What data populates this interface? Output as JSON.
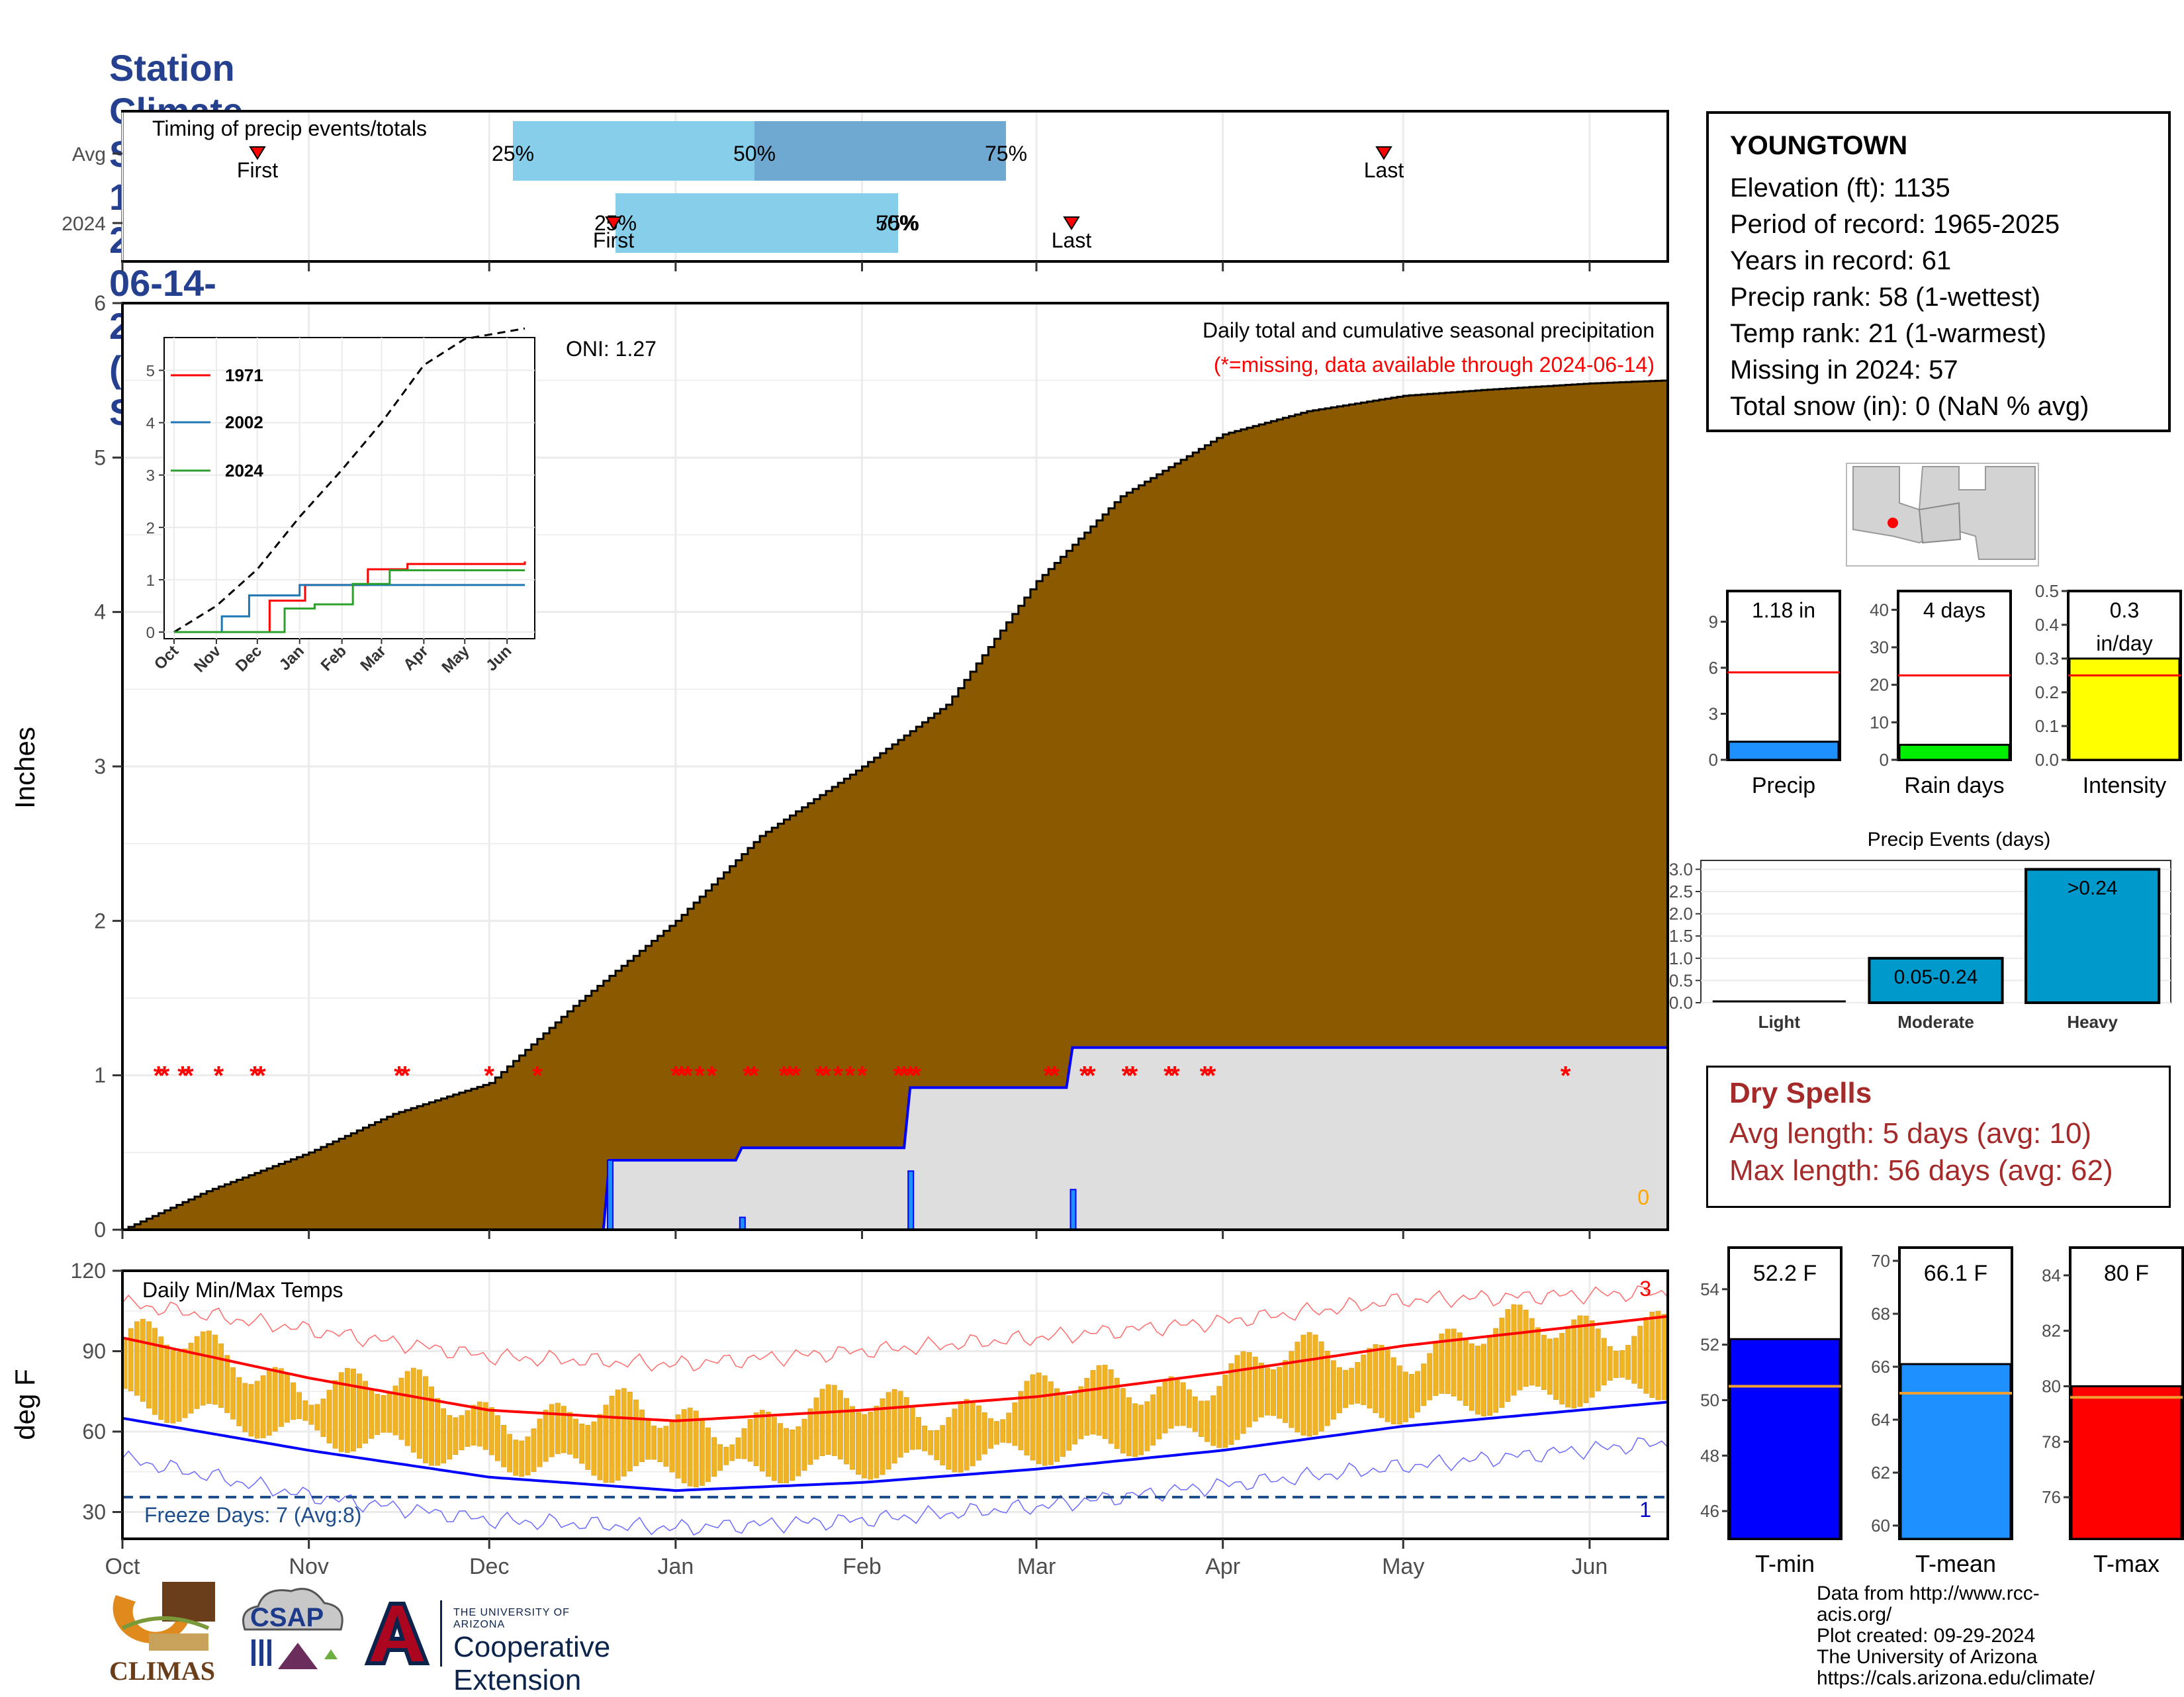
{
  "title": "Station Climate Summary: 10-01-2023 to 06-14-2024 (Cool Season)",
  "timing_panel": {
    "label": "Timing of precip events/totals",
    "rows": [
      "Avg",
      "2024"
    ],
    "avg": {
      "first_label": "First",
      "last_label": "Last",
      "p25": "25%",
      "p50": "50%",
      "p75": "75%"
    },
    "y2024": {
      "first_label": "First",
      "last_label": "Last",
      "p25": "25%",
      "p50": "50%",
      "p75": "75%"
    }
  },
  "station": {
    "name": "YOUNGTOWN",
    "lines": [
      "Elevation (ft): 1135",
      "Period of record: 1965-2025",
      "Years in record: 61",
      "Precip rank: 58 (1-wettest)",
      "Temp rank: 21 (1-warmest)",
      "Missing in 2024: 57",
      "Total snow (in): 0 (NaN % avg)"
    ]
  },
  "precip_panel": {
    "y_label": "Inches",
    "header": "Daily total and cumulative seasonal precipitation",
    "missing_note": "(*=missing, data available through 2024-06-14)",
    "oni": "ONI: 1.27",
    "zero_label": "0",
    "y_ticks": [
      "0",
      "1",
      "2",
      "3",
      "4",
      "5",
      "6"
    ]
  },
  "inset": {
    "legend": [
      "1971",
      "2002",
      "2024"
    ],
    "y_ticks": [
      "0",
      "1",
      "2",
      "3",
      "4",
      "5"
    ],
    "x_ticks": [
      "Oct",
      "Nov",
      "Dec",
      "Jan",
      "Feb",
      "Mar",
      "Apr",
      "May",
      "Jun"
    ]
  },
  "temp_panel": {
    "y_label": "deg F",
    "header": "Daily Min/Max Temps",
    "freeze_note": "Freeze Days: 7 (Avg:8)",
    "y_ticks": [
      "30",
      "60",
      "90",
      "120"
    ],
    "top_count": "3",
    "bottom_count": "1"
  },
  "x_ticks": [
    "Oct",
    "Nov",
    "Dec",
    "Jan",
    "Feb",
    "Mar",
    "Apr",
    "May",
    "Jun"
  ],
  "mini_bars": {
    "precip": {
      "label": "Precip",
      "value_text": "1.18 in",
      "ticks": [
        "0",
        "3",
        "6",
        "9"
      ]
    },
    "rain_days": {
      "label": "Rain days",
      "value_text": "4 days",
      "ticks": [
        "0",
        "10",
        "20",
        "30",
        "40"
      ]
    },
    "intensity": {
      "label": "Intensity",
      "value_text": "0.3",
      "value_text2": "in/day",
      "ticks": [
        "0.0",
        "0.1",
        "0.2",
        "0.3",
        "0.4",
        "0.5"
      ]
    }
  },
  "events": {
    "title": "Precip Events (days)",
    "categories": [
      "Light",
      "Moderate",
      "Heavy"
    ],
    "bar_labels": [
      "",
      "0.05-0.24",
      ">0.24"
    ],
    "ticks": [
      "0.0",
      "0.5",
      "1.0",
      "1.5",
      "2.0",
      "2.5",
      "3.0"
    ]
  },
  "dry_spells": {
    "title": "Dry Spells",
    "avg_line": "Avg length: 5 days (avg: 10)",
    "max_line": "Max length: 56 days (avg: 62)"
  },
  "temp_bars": {
    "tmin": {
      "label": "T-min",
      "value_text": "52.2 F",
      "ticks": [
        "46",
        "48",
        "50",
        "52",
        "54"
      ]
    },
    "tmean": {
      "label": "T-mean",
      "value_text": "66.1 F",
      "ticks": [
        "60",
        "62",
        "64",
        "66",
        "68",
        "70"
      ]
    },
    "tmax": {
      "label": "T-max",
      "value_text": "80 F",
      "ticks": [
        "76",
        "78",
        "80",
        "82",
        "84"
      ]
    }
  },
  "credits": [
    "Data from http://www.rcc-acis.org/",
    "Plot created: 09-29-2024",
    "The University of Arizona",
    "https://cals.arizona.edu/climate/"
  ],
  "logos": {
    "climas": "CLIMAS",
    "csap": "CSAP",
    "ua_small": "THE UNIVERSITY OF ARIZONA",
    "ua_big": "Cooperative Extension"
  },
  "colors": {
    "title": "#25408f",
    "cumulative_fill": "#8b5a00",
    "current_fill": "#dedede",
    "current_line": "#0000ff",
    "missing": "#ff0000",
    "tmax_line": "#ff0000",
    "tmin_line": "#0000ff",
    "daily_bar": "#f0b323",
    "precip_bar": "#1e90ff",
    "rain_days_bar": "#00ee00",
    "intensity_bar": "#ffff00",
    "events_bar": "#0099cc"
  },
  "chart_data": [
    {
      "type": "area",
      "name": "cumulative precipitation",
      "ylabel": "Inches",
      "ylim": [
        0,
        6
      ],
      "x_axis": [
        "Oct",
        "Nov",
        "Dec",
        "Jan",
        "Feb",
        "Mar",
        "Apr",
        "May",
        "Jun"
      ],
      "series": [
        {
          "name": "Average cumulative",
          "x": [
            "2023-10-01",
            "2023-10-15",
            "2023-11-01",
            "2023-11-15",
            "2023-12-01",
            "2023-12-15",
            "2024-01-01",
            "2024-01-15",
            "2024-02-01",
            "2024-02-15",
            "2024-03-01",
            "2024-03-15",
            "2024-04-01",
            "2024-04-15",
            "2024-05-01",
            "2024-05-15",
            "2024-06-01",
            "2024-06-14"
          ],
          "y": [
            0.0,
            0.25,
            0.5,
            0.75,
            0.95,
            1.45,
            2.0,
            2.55,
            3.0,
            3.4,
            4.2,
            4.75,
            5.15,
            5.3,
            5.4,
            5.44,
            5.48,
            5.5
          ]
        },
        {
          "name": "2024 cumulative",
          "x": [
            "2023-10-01",
            "2023-12-20",
            "2023-12-21",
            "2024-01-11",
            "2024-01-12",
            "2024-02-08",
            "2024-02-09",
            "2024-03-06",
            "2024-03-07",
            "2024-06-14"
          ],
          "y": [
            0.0,
            0.0,
            0.45,
            0.45,
            0.53,
            0.53,
            0.92,
            0.92,
            1.18,
            1.18
          ]
        }
      ],
      "daily_precip_2024": [
        {
          "x": "2023-12-21",
          "y": 0.45
        },
        {
          "x": "2024-01-12",
          "y": 0.08
        },
        {
          "x": "2024-02-09",
          "y": 0.38
        },
        {
          "x": "2024-03-07",
          "y": 0.26
        }
      ],
      "missing_days": [
        "2023-10-07",
        "2023-10-08",
        "2023-10-11",
        "2023-10-12",
        "2023-10-17",
        "2023-10-23",
        "2023-10-24",
        "2023-11-16",
        "2023-11-17",
        "2023-12-01",
        "2023-12-09",
        "2024-01-01",
        "2024-01-02",
        "2024-01-03",
        "2024-01-05",
        "2024-01-07",
        "2024-01-13",
        "2024-01-14",
        "2024-01-19",
        "2024-01-20",
        "2024-01-21",
        "2024-01-25",
        "2024-01-26",
        "2024-01-28",
        "2024-01-30",
        "2024-02-01",
        "2024-02-07",
        "2024-02-08",
        "2024-02-09",
        "2024-02-10",
        "2024-03-03",
        "2024-03-04",
        "2024-03-09",
        "2024-03-10",
        "2024-03-16",
        "2024-03-17",
        "2024-03-23",
        "2024-03-24",
        "2024-03-29",
        "2024-03-30",
        "2024-05-28"
      ],
      "header": "Daily total and cumulative seasonal precipitation"
    },
    {
      "type": "line",
      "name": "inset cumulative",
      "ylim": [
        0,
        5.5
      ],
      "x_axis": [
        "Oct",
        "Nov",
        "Dec",
        "Jan",
        "Feb",
        "Mar",
        "Apr",
        "May",
        "Jun"
      ],
      "series": [
        {
          "name": "average",
          "x": [
            "2023-10-01",
            "2023-11-01",
            "2023-12-01",
            "2024-01-01",
            "2024-02-01",
            "2024-03-01",
            "2024-04-01",
            "2024-05-01",
            "2024-06-14"
          ],
          "y": [
            0.0,
            0.5,
            1.2,
            2.2,
            3.1,
            4.0,
            5.1,
            5.6,
            5.8
          ]
        },
        {
          "name": "1971",
          "x": [
            "2023-10-01",
            "2023-12-01",
            "2023-12-10",
            "2024-01-05",
            "2024-02-20",
            "2024-03-20",
            "2024-06-14"
          ],
          "y": [
            0.0,
            0.0,
            0.6,
            0.9,
            1.2,
            1.3,
            1.35
          ]
        },
        {
          "name": "2002",
          "x": [
            "2023-10-01",
            "2023-11-05",
            "2023-11-25",
            "2024-01-01",
            "2024-06-14"
          ],
          "y": [
            0.0,
            0.3,
            0.7,
            0.9,
            0.9
          ]
        },
        {
          "name": "2024",
          "x": [
            "2023-10-01",
            "2023-12-21",
            "2024-01-12",
            "2024-02-09",
            "2024-03-07",
            "2024-06-14"
          ],
          "y": [
            0.0,
            0.45,
            0.53,
            0.92,
            1.18,
            1.18
          ]
        }
      ]
    },
    {
      "type": "bar",
      "name": "daily min/max temperatures",
      "ylabel": "deg F",
      "ylim": [
        20,
        120
      ],
      "x_axis": [
        "Oct",
        "Nov",
        "Dec",
        "Jan",
        "Feb",
        "Mar",
        "Apr",
        "May",
        "Jun"
      ],
      "series": [
        {
          "name": "Avg Tmax",
          "x": [
            "2023-10-01",
            "2023-11-01",
            "2023-12-01",
            "2024-01-01",
            "2024-02-01",
            "2024-03-01",
            "2024-04-01",
            "2024-05-01",
            "2024-06-14"
          ],
          "y": [
            95,
            80,
            68,
            64,
            68,
            73,
            82,
            92,
            103
          ]
        },
        {
          "name": "Avg Tmin",
          "x": [
            "2023-10-01",
            "2023-11-01",
            "2023-12-01",
            "2024-01-01",
            "2024-02-01",
            "2024-03-01",
            "2024-04-01",
            "2024-05-01",
            "2024-06-14"
          ],
          "y": [
            65,
            53,
            43,
            38,
            41,
            46,
            53,
            62,
            71
          ]
        },
        {
          "name": "Record Tmax",
          "x": [
            "2023-10-01",
            "2023-11-01",
            "2023-12-01",
            "2024-01-01",
            "2024-02-01",
            "2024-03-01",
            "2024-04-01",
            "2024-05-01",
            "2024-06-14"
          ],
          "y": [
            108,
            98,
            88,
            85,
            90,
            95,
            101,
            109,
            112
          ]
        },
        {
          "name": "Record Tmin",
          "x": [
            "2023-10-01",
            "2023-11-01",
            "2023-12-01",
            "2024-01-01",
            "2024-02-01",
            "2024-03-01",
            "2024-04-01",
            "2024-05-01",
            "2024-06-14"
          ],
          "y": [
            50,
            36,
            27,
            24,
            27,
            32,
            40,
            47,
            56
          ]
        }
      ],
      "freeze_line": 32
    },
    {
      "type": "bar",
      "name": "Precip",
      "categories": [
        "Precip"
      ],
      "values": [
        1.18
      ],
      "ylim": [
        0,
        11
      ],
      "average": 5.7
    },
    {
      "type": "bar",
      "name": "Rain days",
      "categories": [
        "Rain days"
      ],
      "values": [
        4
      ],
      "ylim": [
        0,
        45
      ],
      "average": 22.5
    },
    {
      "type": "bar",
      "name": "Intensity",
      "categories": [
        "Intensity"
      ],
      "values": [
        0.3
      ],
      "ylim": [
        0,
        0.5
      ],
      "average": 0.25
    },
    {
      "type": "bar",
      "name": "Precip Events (days)",
      "categories": [
        "Light",
        "Moderate",
        "Heavy"
      ],
      "values": [
        0,
        1,
        3
      ],
      "ylim": [
        0,
        3.2
      ]
    },
    {
      "type": "bar",
      "name": "T-min",
      "categories": [
        "T-min"
      ],
      "values": [
        52.2
      ],
      "ylim": [
        45,
        55.5
      ],
      "average": 50.5
    },
    {
      "type": "bar",
      "name": "T-mean",
      "categories": [
        "T-mean"
      ],
      "values": [
        66.1
      ],
      "ylim": [
        59.5,
        70.5
      ],
      "average": 65
    },
    {
      "type": "bar",
      "name": "T-max",
      "categories": [
        "T-max"
      ],
      "values": [
        80
      ],
      "ylim": [
        74.5,
        85
      ],
      "average": 79.6
    }
  ]
}
